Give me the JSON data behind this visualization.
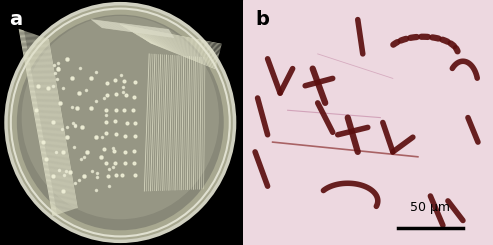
{
  "figsize": [
    4.93,
    2.45
  ],
  "dpi": 100,
  "panel_a": {
    "label": "a",
    "label_fontsize": 14,
    "label_color": "white",
    "label_fontweight": "bold",
    "bg_color": "#000000",
    "plate_outer_color": "#b8b8a0",
    "plate_inner_color": "#c0c0a8",
    "agar_color": "#9a9a88",
    "colony_color": "#efefd8",
    "streak_color": "#e8e8d0"
  },
  "panel_b": {
    "label": "b",
    "label_fontsize": 14,
    "label_color": "black",
    "label_fontweight": "bold",
    "bg_color": "#efd8dc",
    "scalebar_text": "50 μm",
    "bacteria_color": "#5c0f0f",
    "thin_line_color": "#7a2828"
  }
}
